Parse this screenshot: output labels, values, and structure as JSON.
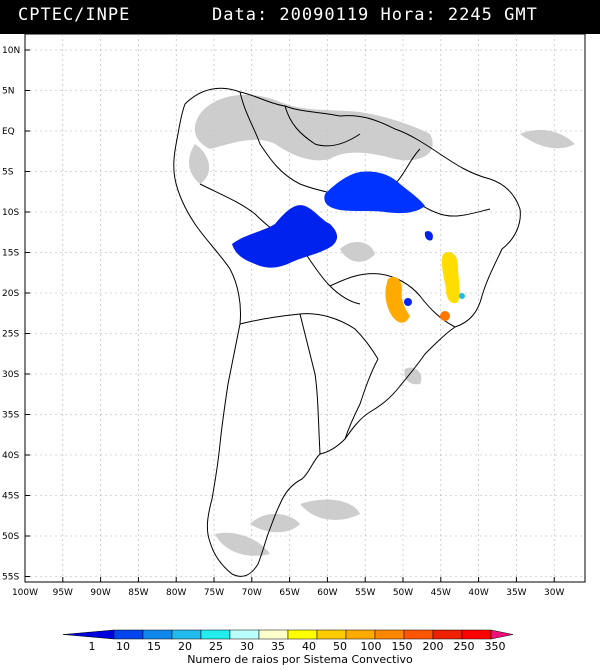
{
  "header": {
    "source": "CPTEC/INPE",
    "datetime": "Data: 20090119 Hora: 2245 GMT"
  },
  "map": {
    "lat_labels": [
      "10N",
      "5N",
      "EQ",
      "5S",
      "10S",
      "15S",
      "20S",
      "25S",
      "30S",
      "35S",
      "40S",
      "45S",
      "50S",
      "55S"
    ],
    "lon_labels": [
      "100W",
      "95W",
      "90W",
      "85W",
      "80W",
      "75W",
      "70W",
      "65W",
      "60W",
      "55W",
      "50W",
      "45W",
      "40W",
      "35W",
      "30W"
    ],
    "colors": {
      "land_outline": "#000000",
      "cloud": "#c8c8c8",
      "grid": "#b0b0b0"
    }
  },
  "legend": {
    "title": "Numero de raios por Sistema Convectivo",
    "values": [
      "1",
      "10",
      "15",
      "20",
      "25",
      "30",
      "35",
      "40",
      "50",
      "100",
      "150",
      "200",
      "250",
      "350"
    ],
    "colors": [
      "#0000dd",
      "#0044ee",
      "#1188ee",
      "#22bbee",
      "#22eeee",
      "#bbffff",
      "#ffffcc",
      "#ffff00",
      "#ffcc00",
      "#ffaa00",
      "#ff8800",
      "#ff5500",
      "#ee2200",
      "#ff0000",
      "#ee1177"
    ]
  },
  "systems": [
    {
      "name": "blue-central-brazil",
      "color": "#0022ee"
    },
    {
      "name": "blue-amazon-east",
      "color": "#0033ff"
    },
    {
      "name": "orange-parana",
      "color": "#ffaa00"
    },
    {
      "name": "yellow-minas",
      "color": "#ffdd00"
    }
  ]
}
